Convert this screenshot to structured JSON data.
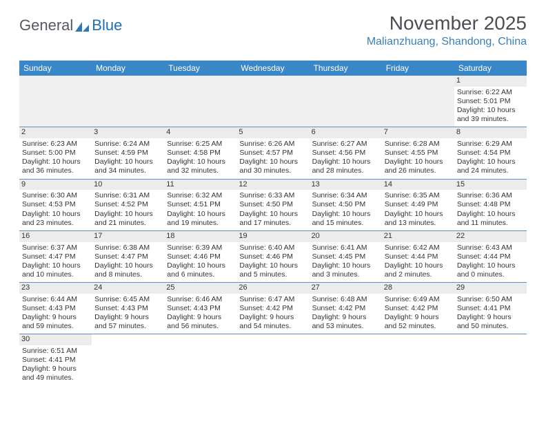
{
  "logo": {
    "general": "General",
    "blue": "Blue"
  },
  "title": "November 2025",
  "location": "Malianzhuang, Shandong, China",
  "colors": {
    "header_bg": "#3a87c8",
    "header_text": "#ffffff",
    "location_text": "#3a7fb5",
    "rule": "#5a8fc0",
    "daynum_bg": "#ececec",
    "empty_bg": "#f0f0f0",
    "title_text": "#4a4f55",
    "logo_gray": "#555a60",
    "logo_blue": "#1f6fb2"
  },
  "day_headers": [
    "Sunday",
    "Monday",
    "Tuesday",
    "Wednesday",
    "Thursday",
    "Friday",
    "Saturday"
  ],
  "weeks": [
    [
      null,
      null,
      null,
      null,
      null,
      null,
      {
        "n": "1",
        "sr": "Sunrise: 6:22 AM",
        "ss": "Sunset: 5:01 PM",
        "d1": "Daylight: 10 hours",
        "d2": "and 39 minutes."
      }
    ],
    [
      {
        "n": "2",
        "sr": "Sunrise: 6:23 AM",
        "ss": "Sunset: 5:00 PM",
        "d1": "Daylight: 10 hours",
        "d2": "and 36 minutes."
      },
      {
        "n": "3",
        "sr": "Sunrise: 6:24 AM",
        "ss": "Sunset: 4:59 PM",
        "d1": "Daylight: 10 hours",
        "d2": "and 34 minutes."
      },
      {
        "n": "4",
        "sr": "Sunrise: 6:25 AM",
        "ss": "Sunset: 4:58 PM",
        "d1": "Daylight: 10 hours",
        "d2": "and 32 minutes."
      },
      {
        "n": "5",
        "sr": "Sunrise: 6:26 AM",
        "ss": "Sunset: 4:57 PM",
        "d1": "Daylight: 10 hours",
        "d2": "and 30 minutes."
      },
      {
        "n": "6",
        "sr": "Sunrise: 6:27 AM",
        "ss": "Sunset: 4:56 PM",
        "d1": "Daylight: 10 hours",
        "d2": "and 28 minutes."
      },
      {
        "n": "7",
        "sr": "Sunrise: 6:28 AM",
        "ss": "Sunset: 4:55 PM",
        "d1": "Daylight: 10 hours",
        "d2": "and 26 minutes."
      },
      {
        "n": "8",
        "sr": "Sunrise: 6:29 AM",
        "ss": "Sunset: 4:54 PM",
        "d1": "Daylight: 10 hours",
        "d2": "and 24 minutes."
      }
    ],
    [
      {
        "n": "9",
        "sr": "Sunrise: 6:30 AM",
        "ss": "Sunset: 4:53 PM",
        "d1": "Daylight: 10 hours",
        "d2": "and 23 minutes."
      },
      {
        "n": "10",
        "sr": "Sunrise: 6:31 AM",
        "ss": "Sunset: 4:52 PM",
        "d1": "Daylight: 10 hours",
        "d2": "and 21 minutes."
      },
      {
        "n": "11",
        "sr": "Sunrise: 6:32 AM",
        "ss": "Sunset: 4:51 PM",
        "d1": "Daylight: 10 hours",
        "d2": "and 19 minutes."
      },
      {
        "n": "12",
        "sr": "Sunrise: 6:33 AM",
        "ss": "Sunset: 4:50 PM",
        "d1": "Daylight: 10 hours",
        "d2": "and 17 minutes."
      },
      {
        "n": "13",
        "sr": "Sunrise: 6:34 AM",
        "ss": "Sunset: 4:50 PM",
        "d1": "Daylight: 10 hours",
        "d2": "and 15 minutes."
      },
      {
        "n": "14",
        "sr": "Sunrise: 6:35 AM",
        "ss": "Sunset: 4:49 PM",
        "d1": "Daylight: 10 hours",
        "d2": "and 13 minutes."
      },
      {
        "n": "15",
        "sr": "Sunrise: 6:36 AM",
        "ss": "Sunset: 4:48 PM",
        "d1": "Daylight: 10 hours",
        "d2": "and 11 minutes."
      }
    ],
    [
      {
        "n": "16",
        "sr": "Sunrise: 6:37 AM",
        "ss": "Sunset: 4:47 PM",
        "d1": "Daylight: 10 hours",
        "d2": "and 10 minutes."
      },
      {
        "n": "17",
        "sr": "Sunrise: 6:38 AM",
        "ss": "Sunset: 4:47 PM",
        "d1": "Daylight: 10 hours",
        "d2": "and 8 minutes."
      },
      {
        "n": "18",
        "sr": "Sunrise: 6:39 AM",
        "ss": "Sunset: 4:46 PM",
        "d1": "Daylight: 10 hours",
        "d2": "and 6 minutes."
      },
      {
        "n": "19",
        "sr": "Sunrise: 6:40 AM",
        "ss": "Sunset: 4:46 PM",
        "d1": "Daylight: 10 hours",
        "d2": "and 5 minutes."
      },
      {
        "n": "20",
        "sr": "Sunrise: 6:41 AM",
        "ss": "Sunset: 4:45 PM",
        "d1": "Daylight: 10 hours",
        "d2": "and 3 minutes."
      },
      {
        "n": "21",
        "sr": "Sunrise: 6:42 AM",
        "ss": "Sunset: 4:44 PM",
        "d1": "Daylight: 10 hours",
        "d2": "and 2 minutes."
      },
      {
        "n": "22",
        "sr": "Sunrise: 6:43 AM",
        "ss": "Sunset: 4:44 PM",
        "d1": "Daylight: 10 hours",
        "d2": "and 0 minutes."
      }
    ],
    [
      {
        "n": "23",
        "sr": "Sunrise: 6:44 AM",
        "ss": "Sunset: 4:43 PM",
        "d1": "Daylight: 9 hours",
        "d2": "and 59 minutes."
      },
      {
        "n": "24",
        "sr": "Sunrise: 6:45 AM",
        "ss": "Sunset: 4:43 PM",
        "d1": "Daylight: 9 hours",
        "d2": "and 57 minutes."
      },
      {
        "n": "25",
        "sr": "Sunrise: 6:46 AM",
        "ss": "Sunset: 4:43 PM",
        "d1": "Daylight: 9 hours",
        "d2": "and 56 minutes."
      },
      {
        "n": "26",
        "sr": "Sunrise: 6:47 AM",
        "ss": "Sunset: 4:42 PM",
        "d1": "Daylight: 9 hours",
        "d2": "and 54 minutes."
      },
      {
        "n": "27",
        "sr": "Sunrise: 6:48 AM",
        "ss": "Sunset: 4:42 PM",
        "d1": "Daylight: 9 hours",
        "d2": "and 53 minutes."
      },
      {
        "n": "28",
        "sr": "Sunrise: 6:49 AM",
        "ss": "Sunset: 4:42 PM",
        "d1": "Daylight: 9 hours",
        "d2": "and 52 minutes."
      },
      {
        "n": "29",
        "sr": "Sunrise: 6:50 AM",
        "ss": "Sunset: 4:41 PM",
        "d1": "Daylight: 9 hours",
        "d2": "and 50 minutes."
      }
    ],
    [
      {
        "n": "30",
        "sr": "Sunrise: 6:51 AM",
        "ss": "Sunset: 4:41 PM",
        "d1": "Daylight: 9 hours",
        "d2": "and 49 minutes."
      },
      null,
      null,
      null,
      null,
      null,
      null
    ]
  ]
}
